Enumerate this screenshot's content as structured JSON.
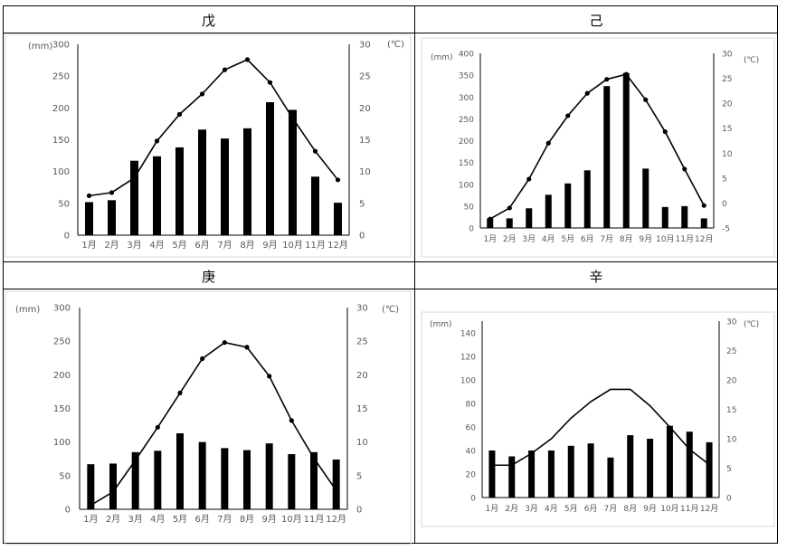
{
  "panels": [
    {
      "title": "戊"
    },
    {
      "title": "己"
    },
    {
      "title": "庚"
    },
    {
      "title": "辛"
    }
  ],
  "chart_data": [
    {
      "type": "bar+line",
      "categories": [
        "1月",
        "2月",
        "3月",
        "4月",
        "5月",
        "6月",
        "7月",
        "8月",
        "9月",
        "10月",
        "11月",
        "12月"
      ],
      "series": [
        {
          "values": [
            52,
            55,
            117,
            124,
            138,
            166,
            152,
            168,
            209,
            197,
            92,
            51
          ]
        },
        {
          "values": [
            6.2,
            6.7,
            9.0,
            14.8,
            19.0,
            22.2,
            26.0,
            27.6,
            24.0,
            18.4,
            13.2,
            8.7
          ]
        }
      ],
      "left_axis": {
        "label": "(mm)",
        "ylim": [
          0,
          300
        ],
        "ticks": [
          "0",
          "50",
          "100",
          "150",
          "200",
          "250",
          "300"
        ]
      },
      "right_axis": {
        "label": "(℃)",
        "ylim": [
          0,
          30
        ],
        "ticks": [
          "0",
          "5",
          "10",
          "15",
          "20",
          "25",
          "30"
        ]
      }
    },
    {
      "type": "bar+line",
      "categories": [
        "1月",
        "2月",
        "3月",
        "4月",
        "5月",
        "6月",
        "7月",
        "8月",
        "9月",
        "10月",
        "11月",
        "12月"
      ],
      "series": [
        {
          "values": [
            22,
            22,
            45,
            76,
            102,
            132,
            325,
            355,
            136,
            48,
            50,
            22
          ]
        },
        {
          "values": [
            -3.2,
            -1.0,
            4.8,
            12.0,
            17.5,
            22.0,
            24.8,
            25.8,
            20.7,
            14.3,
            6.8,
            -0.5
          ]
        }
      ],
      "left_axis": {
        "label": "(mm)",
        "ylim": [
          0,
          400
        ],
        "ticks": [
          "0",
          "50",
          "100",
          "150",
          "200",
          "250",
          "300",
          "350",
          "400"
        ]
      },
      "right_axis": {
        "label": "(℃)",
        "ylim": [
          -5,
          30
        ],
        "ticks": [
          "-5",
          "0",
          "5",
          "10",
          "15",
          "20",
          "25",
          "30"
        ]
      }
    },
    {
      "type": "bar+line",
      "categories": [
        "1月",
        "2月",
        "3月",
        "4月",
        "5月",
        "6月",
        "7月",
        "8月",
        "9月",
        "10月",
        "11月",
        "12月"
      ],
      "series": [
        {
          "values": [
            67,
            68,
            85,
            87,
            113,
            100,
            91,
            88,
            98,
            82,
            85,
            74
          ]
        },
        {
          "values": [
            0.6,
            2.6,
            7.3,
            12.2,
            17.3,
            22.4,
            24.8,
            24.1,
            19.8,
            13.2,
            7.6,
            2.8
          ]
        }
      ],
      "left_axis": {
        "label": "(mm)",
        "ylim": [
          0,
          300
        ],
        "ticks": [
          "0",
          "50",
          "100",
          "150",
          "200",
          "250",
          "300"
        ]
      },
      "right_axis": {
        "label": "(℃)",
        "ylim": [
          0,
          30
        ],
        "ticks": [
          "0",
          "5",
          "10",
          "15",
          "20",
          "25",
          "30"
        ]
      }
    },
    {
      "type": "bar+line",
      "categories": [
        "1月",
        "2月",
        "3月",
        "4月",
        "5月",
        "6月",
        "7月",
        "8月",
        "9月",
        "10月",
        "11月",
        "12月"
      ],
      "series": [
        {
          "values": [
            40,
            35,
            40,
            40,
            44,
            46,
            34,
            53,
            50,
            61,
            56,
            47
          ]
        },
        {
          "values": [
            5.5,
            5.5,
            7.5,
            10.0,
            13.5,
            16.3,
            18.4,
            18.4,
            15.6,
            12.0,
            8.2,
            5.6
          ]
        }
      ],
      "left_axis": {
        "label": "(mm)",
        "ylim": [
          0,
          150
        ],
        "ticks": [
          "0",
          "20",
          "40",
          "60",
          "80",
          "100",
          "120",
          "140"
        ]
      },
      "right_axis": {
        "label": "(℃)",
        "ylim": [
          0,
          30
        ],
        "ticks": [
          "0",
          "5",
          "10",
          "15",
          "20",
          "25",
          "30"
        ]
      }
    }
  ]
}
